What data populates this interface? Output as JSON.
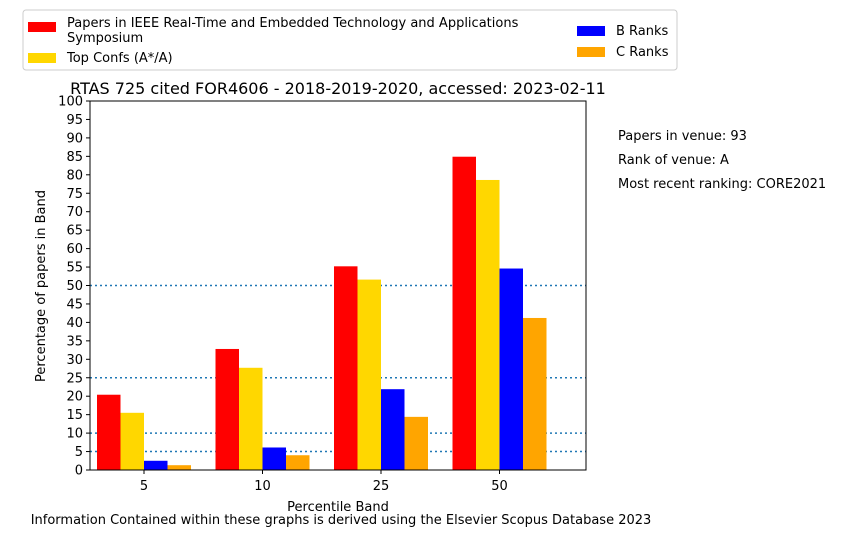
{
  "chart_data": {
    "type": "bar",
    "title": "RTAS 725 cited FOR4606 - 2018-2019-2020, accessed: 2023-02-11",
    "xlabel": "Percentile Band",
    "ylabel": "Percentage of papers in Band",
    "categories": [
      "5",
      "10",
      "25",
      "50"
    ],
    "ylim": [
      0,
      100
    ],
    "yticks": [
      0,
      5,
      10,
      15,
      20,
      25,
      30,
      35,
      40,
      45,
      50,
      55,
      60,
      65,
      70,
      75,
      80,
      85,
      90,
      95,
      100
    ],
    "reference_lines": [
      5,
      10,
      25,
      50
    ],
    "legend_position": "top, above the plot",
    "series": [
      {
        "name": "Papers in IEEE Real-Time and Embedded Technology and Applications Symposium",
        "color": "#ff0000",
        "values": [
          20.4,
          32.8,
          55.2,
          84.9
        ]
      },
      {
        "name": "Top Confs (A*/A)",
        "color": "#ffd700",
        "values": [
          15.5,
          27.7,
          51.6,
          78.6
        ]
      },
      {
        "name": "B Ranks",
        "color": "#0000ff",
        "values": [
          2.5,
          6.1,
          21.9,
          54.6
        ]
      },
      {
        "name": "C Ranks",
        "color": "#ffa500",
        "values": [
          1.3,
          4.0,
          14.4,
          41.2
        ]
      }
    ],
    "legend_lines": [
      [
        "Papers in IEEE Real-Time and Embedded Technology and Applications",
        "Symposium"
      ],
      [
        "Top Confs (A*/A)"
      ],
      [
        "B Ranks"
      ],
      [
        "C Ranks"
      ]
    ]
  },
  "side_info": [
    "Papers in venue: 93",
    "Rank of venue: A",
    "Most recent ranking: CORE2021"
  ],
  "footer": "Information Contained within these graphs is derived using the Elsevier Scopus Database 2023"
}
